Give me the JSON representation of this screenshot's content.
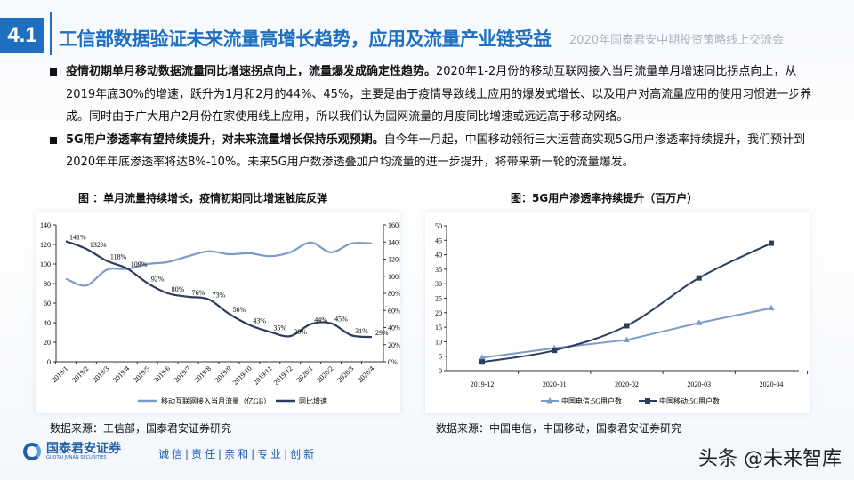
{
  "header": {
    "number": "4.1",
    "title": "工信部数据验证未来流量高增长趋势，应用及流量产业链受益",
    "subtitle": "2020年国泰君安中期投资策略线上交流会"
  },
  "bullets": [
    {
      "bold": "疫情初期单月移动数据流量同比增速拐点向上，流量爆发成确定性趋势。",
      "text": "2020年1-2月份的移动互联网接入当月流量单月增速同比拐点向上，从2019年底30%的增速，跃升为1月和2月的44%、45%，主要是由于疫情导致线上应用的爆发式增长、以及用户对高流量应用的使用习惯进一步养成。同时由于广大用户2月份在家使用线上应用，所以我们认为固网流量的月度同比增速或远远高于移动网络。"
    },
    {
      "bold": "5G用户渗透率有望持续提升，对未来流量增长保持乐观预期。",
      "text": "自今年一月起，中国移动领衔三大运营商实现5G用户渗透率持续提升，我们预计到2020年年底渗透率将达8%-10%。未来5G用户数渗透叠加户均流量的进一步提升，将带来新一轮的流量爆发。"
    }
  ],
  "chart_data": [
    {
      "type": "line",
      "title": "图 ：单月流量持续增长，疫情初期同比增速触底反弹",
      "categories": [
        "2019/1",
        "2019/2",
        "2019/3",
        "2019/4",
        "2019/5",
        "2019/6",
        "2019/7",
        "2019/8",
        "2019/9",
        "2019/10",
        "2019/11",
        "2019/12",
        "2020/1",
        "2020/2",
        "2020/3",
        "2020/4"
      ],
      "ylim": [
        0,
        140
      ],
      "yticks": [
        "0",
        "20",
        "40",
        "60",
        "80",
        "100",
        "120",
        "140"
      ],
      "y2lim": [
        0,
        160
      ],
      "y2ticks": [
        "0%",
        "20%",
        "40%",
        "60%",
        "80%",
        "100%",
        "120%",
        "140%",
        "160%"
      ],
      "legend": "bottom",
      "series": [
        {
          "name": "移动互联网接入当月流量（亿GB）",
          "axis": "left",
          "color": "#7a9cc6",
          "values": [
            85,
            78,
            94,
            95,
            100,
            102,
            108,
            113,
            110,
            111,
            108,
            112,
            122,
            112,
            121,
            121
          ]
        },
        {
          "name": "同比增速",
          "axis": "right",
          "color": "#2c3e5c",
          "values": [
            141,
            132,
            118,
            109,
            92,
            80,
            76,
            73,
            56,
            43,
            35,
            30,
            44,
            45,
            31,
            29
          ],
          "labels": [
            "141%",
            "132%",
            "118%",
            "109%",
            "92%",
            "80%",
            "76%",
            "73%",
            "56%",
            "43%",
            "35%",
            "30%",
            "44%",
            "45%",
            "31%",
            "29%"
          ]
        }
      ]
    },
    {
      "type": "line",
      "title": "图：5G用户渗透率持续提升（百万户）",
      "categories": [
        "2019-12",
        "2020-01",
        "2020-02",
        "2020-03",
        "2020-04"
      ],
      "ylim": [
        0,
        50
      ],
      "yticks": [
        "0",
        "5",
        "10",
        "15",
        "20",
        "25",
        "30",
        "35",
        "40",
        "45",
        "50"
      ],
      "legend": "bottom",
      "series": [
        {
          "name": "中国电信:5G用户数",
          "marker": "triangle",
          "color": "#7a9cc6",
          "values": [
            4.5,
            7.8,
            10.6,
            16.5,
            21.6
          ]
        },
        {
          "name": "中国移动:5G用户数",
          "marker": "square",
          "color": "#2c3e5c",
          "values": [
            3,
            7,
            15.5,
            32,
            44
          ]
        }
      ]
    }
  ],
  "sources": [
    "数据来源：工信部，国泰君安证券研究",
    "数据来源：中国电信，中国移动，国泰君安证券研究"
  ],
  "footer": {
    "logo_cn": "国泰君安证券",
    "logo_en": "GUOTAI JUNAN SECURITIES",
    "slogan": "诚信|责任|亲和|专业|创新",
    "watermark": "头条 @未来智库"
  }
}
